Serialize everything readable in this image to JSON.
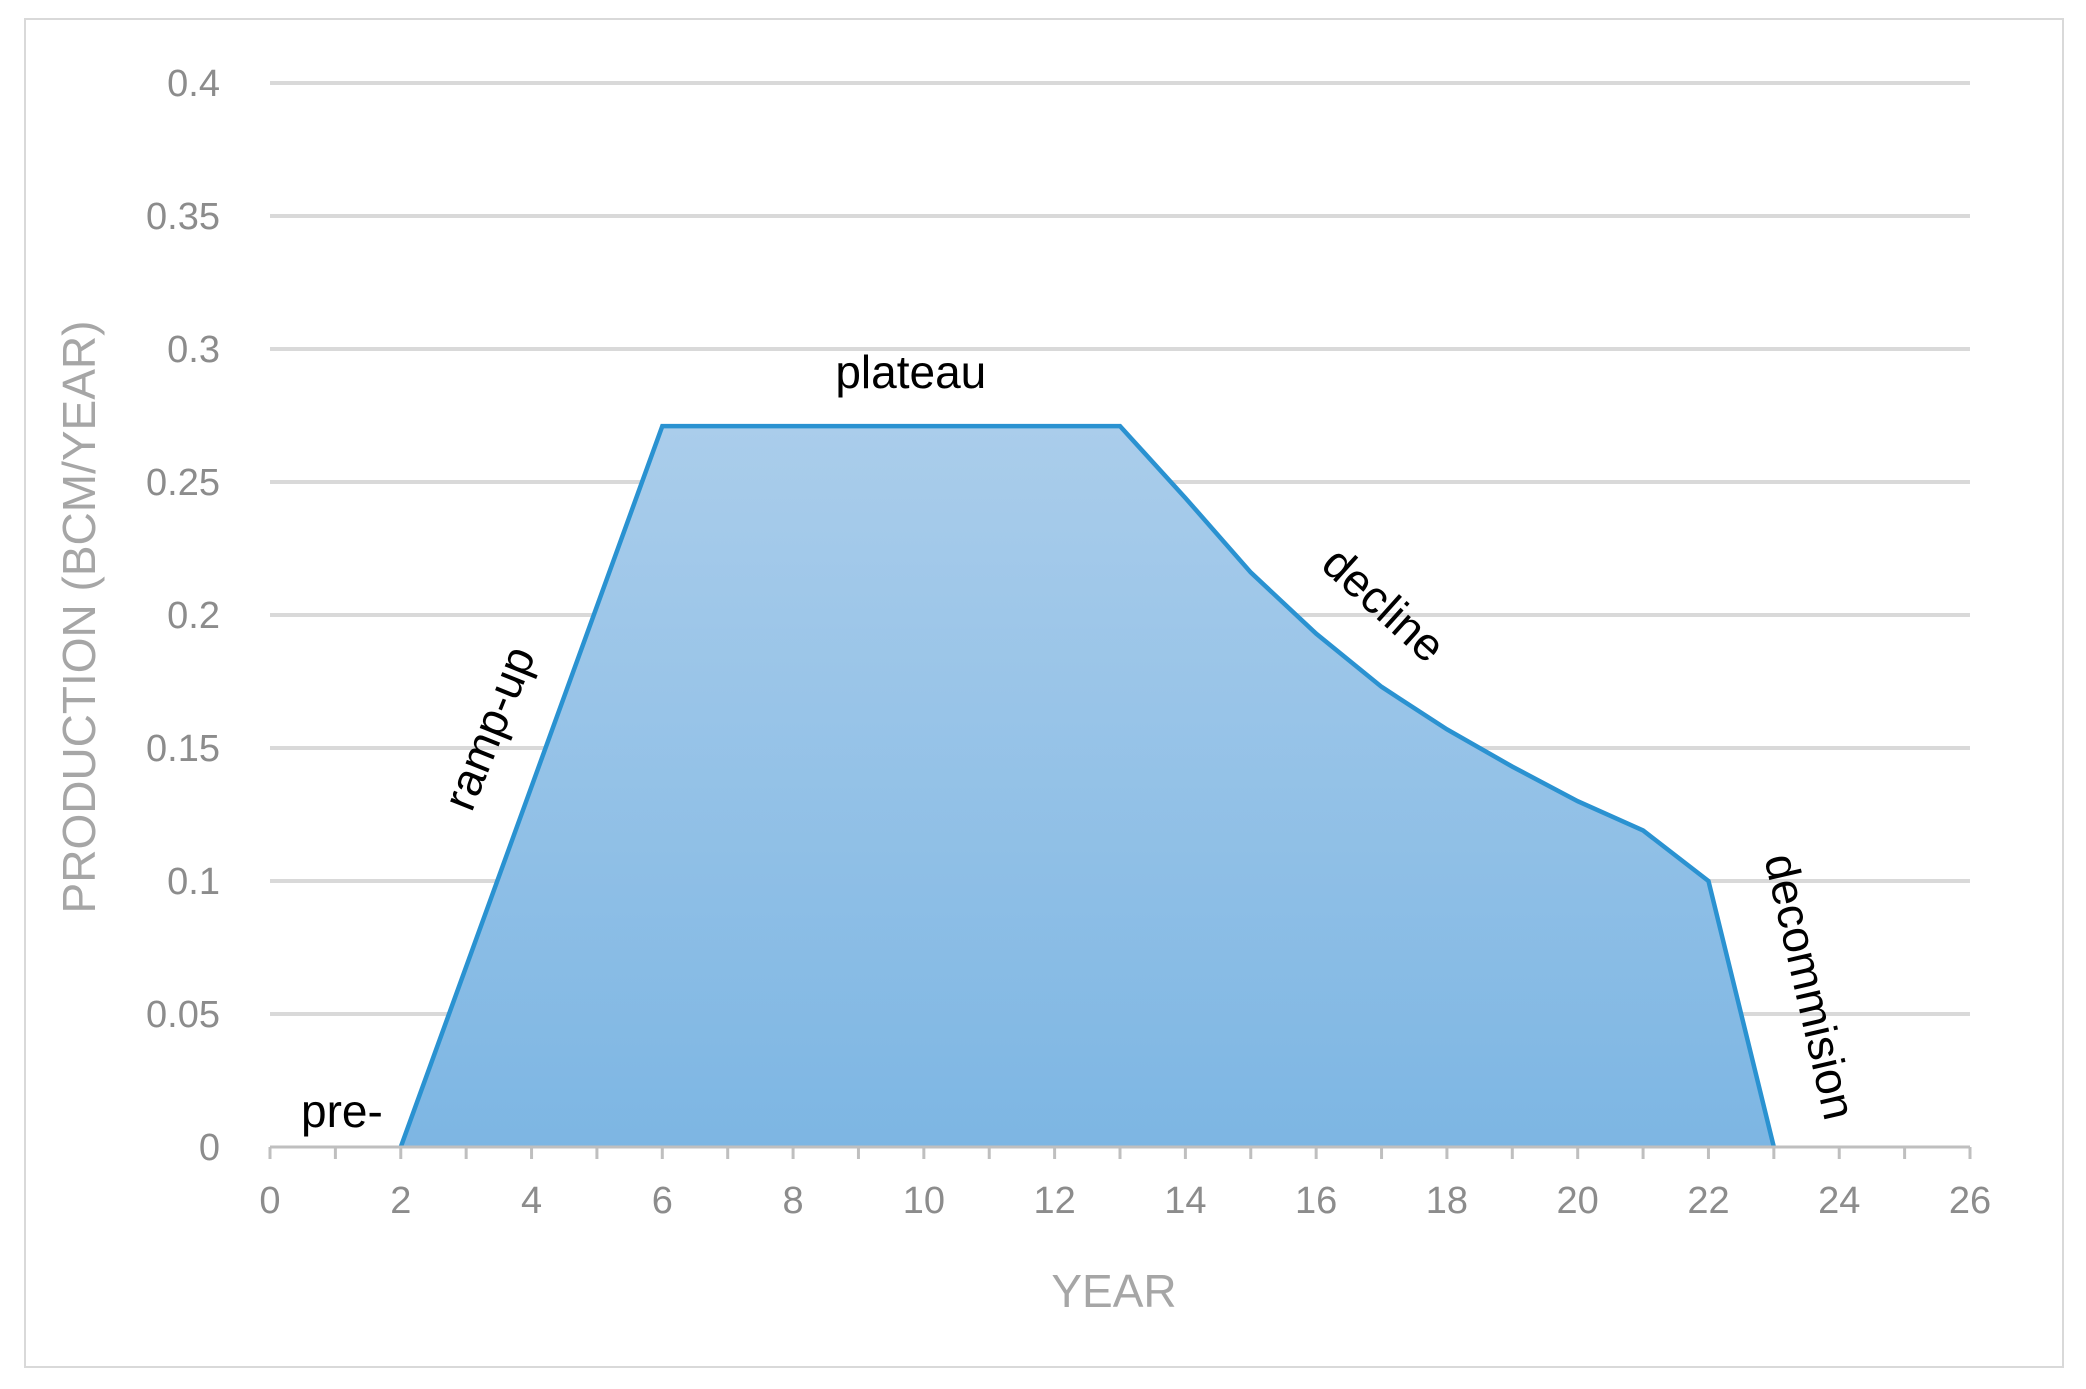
{
  "colors": {
    "line": "#2a92d1",
    "fill_top": "#aacdeb",
    "fill_bottom": "#7db6e3",
    "grid": "#d9d9d9",
    "axis": "#bfbfbf",
    "tick_text": "#8c8c8c",
    "title_text": "#a6a6a6"
  },
  "chart_data": {
    "type": "area",
    "xlabel": "YEAR",
    "ylabel": "PRODUCTION (BCM/YEAR)",
    "xlim": [
      0,
      26
    ],
    "ylim": [
      0,
      0.4
    ],
    "xticks": [
      "0",
      "2",
      "4",
      "6",
      "8",
      "10",
      "12",
      "14",
      "16",
      "18",
      "20",
      "22",
      "24",
      "26"
    ],
    "yticks": [
      "0",
      "0.05",
      "0.1",
      "0.15",
      "0.2",
      "0.25",
      "0.3",
      "0.35",
      "0.4"
    ],
    "grid": true,
    "series": [
      {
        "x": [
          2,
          6,
          13,
          14,
          15,
          16,
          17,
          18,
          19,
          20,
          21,
          22,
          23
        ],
        "y": [
          0,
          0.271,
          0.271,
          0.244,
          0.216,
          0.193,
          0.173,
          0.157,
          0.143,
          0.13,
          0.119,
          0.1,
          0
        ]
      }
    ],
    "annotations": [
      {
        "text": "pre-",
        "x": 1.1,
        "y": 0.012,
        "rotate": 0
      },
      {
        "text": "ramp-up",
        "x": 3.4,
        "y": 0.157,
        "rotate": -68
      },
      {
        "text": "plateau",
        "x": 9.8,
        "y": 0.29,
        "rotate": 0
      },
      {
        "text": "decline",
        "x": 17.0,
        "y": 0.203,
        "rotate": 42
      },
      {
        "text": "decommision",
        "x": 23.5,
        "y": 0.06,
        "rotate": 77
      }
    ]
  }
}
